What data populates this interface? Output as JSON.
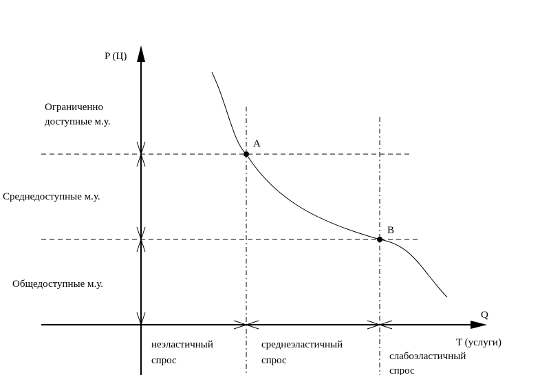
{
  "axes": {
    "y_label": "P (Ц)",
    "x_label": "Q",
    "x_sublabel": "T (услуги)"
  },
  "y_zones": [
    {
      "lines": [
        "Ограниченно",
        "доступные м.у."
      ]
    },
    {
      "lines": [
        "Среднедоступные м.у."
      ]
    },
    {
      "lines": [
        "Общедоступные м.у."
      ]
    }
  ],
  "x_zones": [
    {
      "lines": [
        "неэластичный",
        "спрос"
      ]
    },
    {
      "lines": [
        "среднеэластичный",
        "спрос"
      ]
    },
    {
      "lines": [
        "слабоэластичный",
        "спрос"
      ]
    }
  ],
  "points": [
    "A",
    "B"
  ]
}
